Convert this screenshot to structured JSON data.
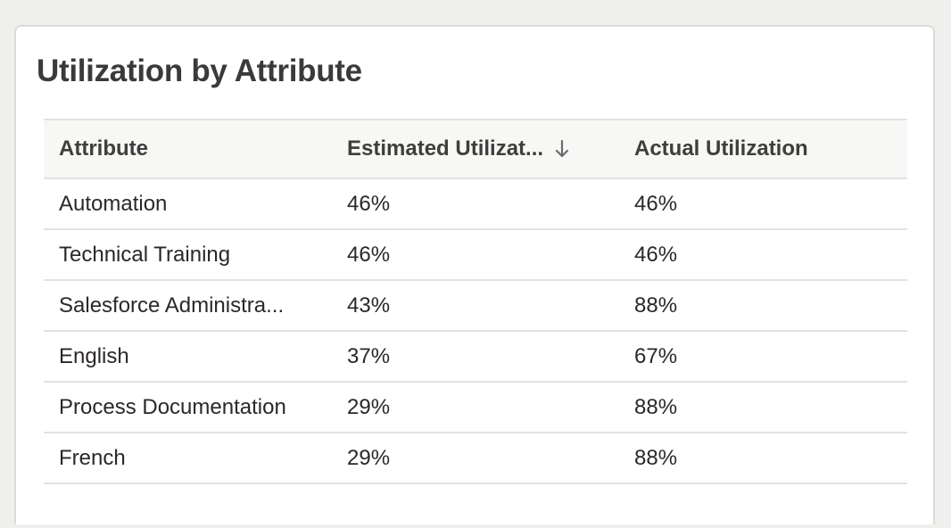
{
  "card": {
    "title": "Utilization by Attribute"
  },
  "table": {
    "columns": [
      {
        "label": "Attribute"
      },
      {
        "label": "Estimated Utilizat...",
        "sort": "descending",
        "sort_icon": "arrow-down-icon"
      },
      {
        "label": "Actual Utilization"
      }
    ],
    "rows": [
      {
        "attribute": "Automation",
        "estimated": "46%",
        "actual": "46%"
      },
      {
        "attribute": "Technical Training",
        "estimated": "46%",
        "actual": "46%"
      },
      {
        "attribute": "Salesforce Administra...",
        "estimated": "43%",
        "actual": "88%"
      },
      {
        "attribute": "English",
        "estimated": "37%",
        "actual": "67%"
      },
      {
        "attribute": "Process Documentation",
        "estimated": "29%",
        "actual": "88%"
      },
      {
        "attribute": "French",
        "estimated": "29%",
        "actual": "88%"
      }
    ]
  },
  "colors": {
    "page_background": "#efefed",
    "card_background": "#ffffff",
    "header_background": "#f7f7f6",
    "divider": "#e3e2df",
    "title_text": "#3a3a3a",
    "body_text": "#2b2826"
  }
}
